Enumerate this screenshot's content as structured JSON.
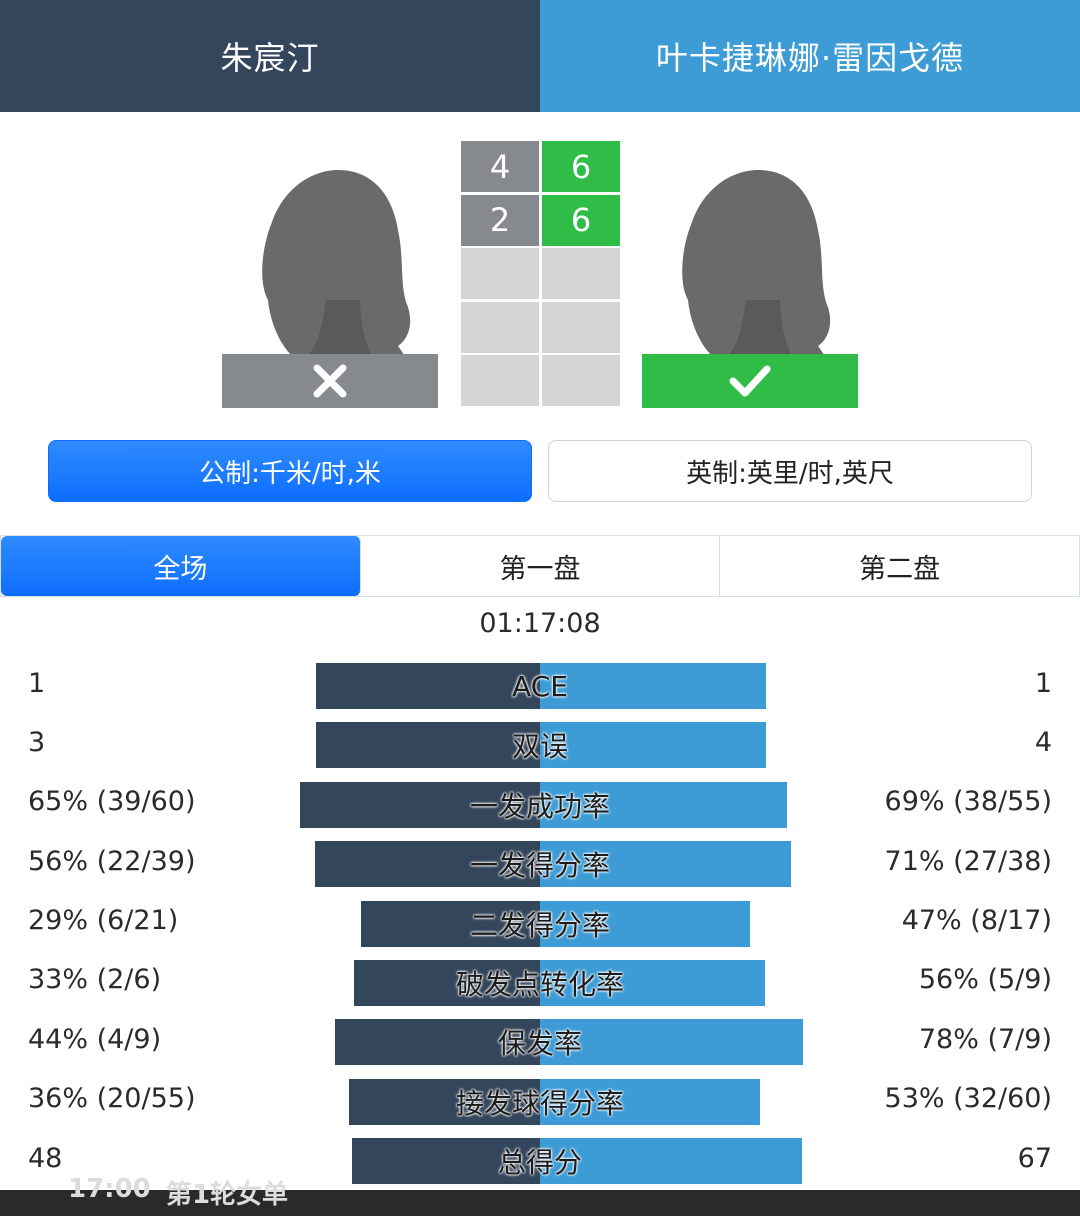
{
  "header": {
    "player_left": "朱宸汀",
    "player_right": "叶卡捷琳娜·雷因戈德"
  },
  "players": {
    "left_result_icon": "close-icon",
    "right_result_icon": "check-icon",
    "left_result": "loss",
    "right_result": "win"
  },
  "sets": [
    {
      "left": "4",
      "right": "6",
      "winner": "right"
    },
    {
      "left": "2",
      "right": "6",
      "winner": "right"
    },
    {
      "left": "",
      "right": ""
    },
    {
      "left": "",
      "right": ""
    },
    {
      "left": "",
      "right": ""
    }
  ],
  "units": {
    "metric": "公制:千米/时,米",
    "imperial": "英制:英里/时,英尺",
    "selected": "metric"
  },
  "tabs": [
    {
      "label": "全场",
      "active": true
    },
    {
      "label": "第一盘",
      "active": false
    },
    {
      "label": "第二盘",
      "active": false
    }
  ],
  "duration": "01:17:08",
  "stats": [
    {
      "label": "ACE",
      "left": "1",
      "right": "1",
      "left_value": 1,
      "right_value": 1
    },
    {
      "label": "双误",
      "left": "3",
      "right": "4",
      "left_value": 3,
      "right_value": 4
    },
    {
      "label": "一发成功率",
      "left": "65% (39/60)",
      "right": "69% (38/55)",
      "left_value": 65,
      "right_value": 69
    },
    {
      "label": "一发得分率",
      "left": "56% (22/39)",
      "right": "71% (27/38)",
      "left_value": 56,
      "right_value": 71
    },
    {
      "label": "二发得分率",
      "left": "29% (6/21)",
      "right": "47% (8/17)",
      "left_value": 29,
      "right_value": 47
    },
    {
      "label": "破发点转化率",
      "left": "33% (2/6)",
      "right": "56% (5/9)",
      "left_value": 33,
      "right_value": 56
    },
    {
      "label": "保发率",
      "left": "44% (4/9)",
      "right": "78% (7/9)",
      "left_value": 44,
      "right_value": 78
    },
    {
      "label": "接发球得分率",
      "left": "36% (20/55)",
      "right": "53% (32/60)",
      "left_value": 36,
      "right_value": 53
    },
    {
      "label": "总得分",
      "left": "48",
      "right": "67",
      "left_value": 48,
      "right_value": 67
    }
  ],
  "colors": {
    "left_player": "#34465b",
    "right_player": "#3d9cd6",
    "win": "#2fbd47",
    "loss": "#86898e",
    "accent": "#0d6efd"
  },
  "bottom_strip": {
    "time": "17:00",
    "round": "第1轮",
    "event": "女单"
  }
}
